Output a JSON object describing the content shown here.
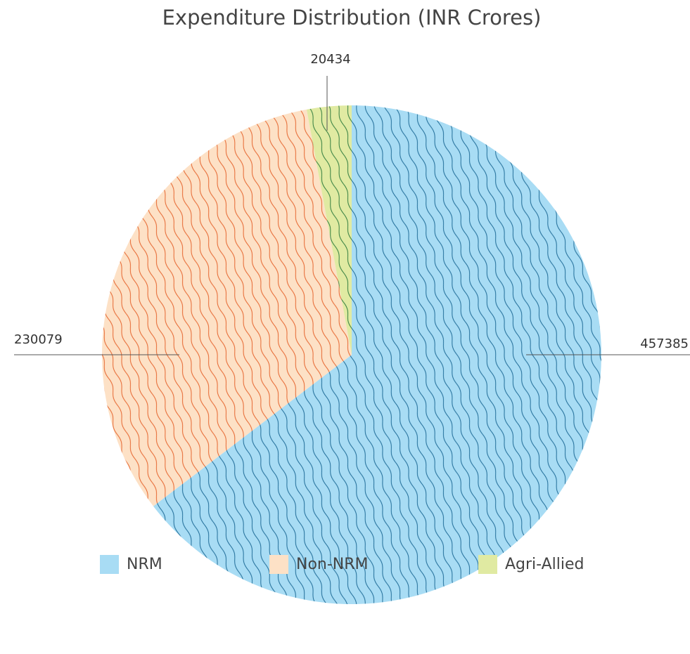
{
  "chart_data": {
    "type": "pie",
    "title": "Expenditure Distribution (INR Crores)",
    "categories": [
      "NRM",
      "Non-NRM",
      "Agri-Allied"
    ],
    "values": [
      457385,
      230079,
      20434
    ],
    "colors": [
      "#a8dcf4",
      "#fde1c6",
      "#e0eaa2"
    ],
    "hatch_colors": [
      "#1d6a96",
      "#e5632c",
      "#2e7a3c"
    ]
  }
}
